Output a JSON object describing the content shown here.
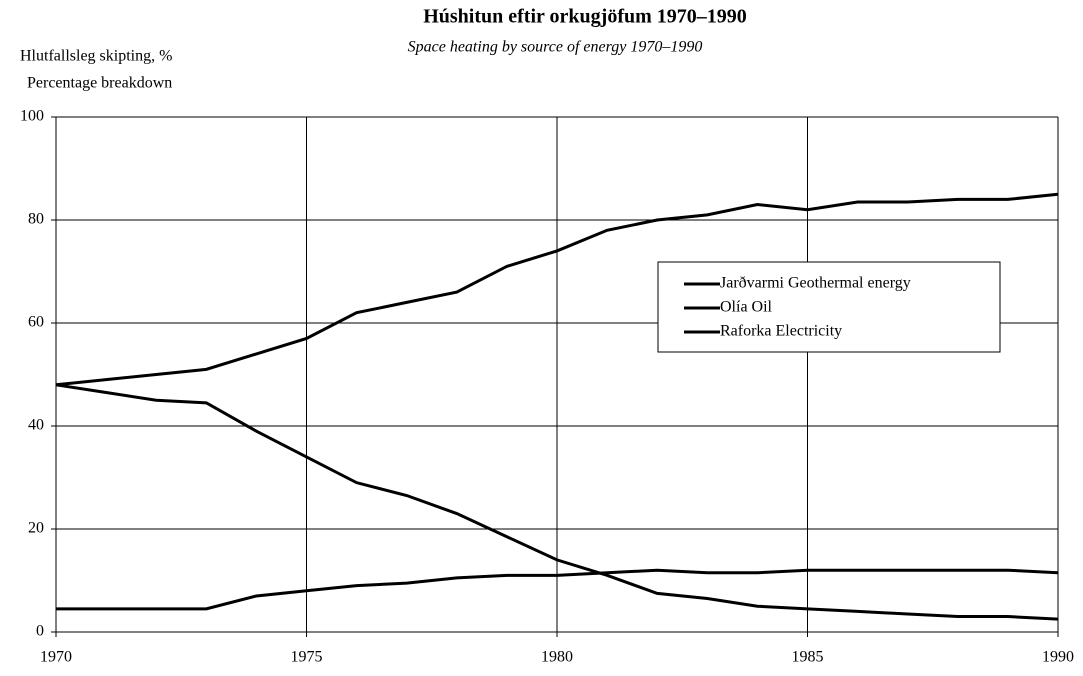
{
  "chart_data": {
    "type": "line",
    "title": "Húshitun eftir orkugjöfum 1970–1990",
    "subtitle": "Space heating by source of energy 1970–1990",
    "y_label": [
      "Hlutfallsleg skipting, %",
      "Percentage breakdown"
    ],
    "x": [
      1970,
      1971,
      1972,
      1973,
      1974,
      1975,
      1976,
      1977,
      1978,
      1979,
      1980,
      1981,
      1982,
      1983,
      1984,
      1985,
      1986,
      1987,
      1988,
      1989,
      1990
    ],
    "series": [
      {
        "name": "Jarðvarmi Geothermal energy",
        "color": "#000000",
        "values": [
          48,
          49,
          50,
          51,
          54,
          57,
          62,
          64,
          66,
          71,
          74,
          78,
          80,
          81,
          83,
          82,
          83.5,
          83.5,
          84,
          84,
          85
        ]
      },
      {
        "name": "Olía Oil",
        "color": "#000000",
        "values": [
          48,
          46.5,
          45,
          44.5,
          39,
          34,
          29,
          26.5,
          23,
          18.5,
          14,
          11,
          7.5,
          6.5,
          5,
          4.5,
          4,
          3.5,
          3,
          3,
          2.5
        ]
      },
      {
        "name": "Raforka Electricity",
        "color": "#000000",
        "values": [
          4.5,
          4.5,
          4.5,
          4.5,
          7,
          8,
          9,
          9.5,
          10.5,
          11,
          11,
          11.5,
          12,
          11.5,
          11.5,
          12,
          12,
          12,
          12,
          12,
          11.5
        ]
      }
    ],
    "xlim": [
      1970,
      1990
    ],
    "xticks": [
      1970,
      1975,
      1980,
      1985,
      1990
    ],
    "ylim": [
      0,
      100
    ],
    "yticks": [
      0,
      20,
      40,
      60,
      80,
      100
    ],
    "grid": true,
    "legend": "right"
  }
}
